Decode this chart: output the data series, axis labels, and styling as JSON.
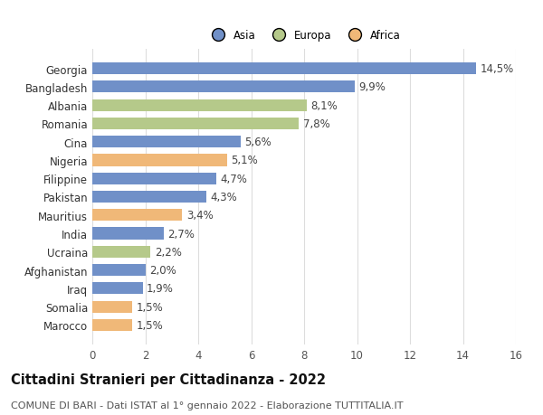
{
  "categories": [
    "Marocco",
    "Somalia",
    "Iraq",
    "Afghanistan",
    "Ucraina",
    "India",
    "Mauritius",
    "Pakistan",
    "Filippine",
    "Nigeria",
    "Cina",
    "Romania",
    "Albania",
    "Bangladesh",
    "Georgia"
  ],
  "values": [
    1.5,
    1.5,
    1.9,
    2.0,
    2.2,
    2.7,
    3.4,
    4.3,
    4.7,
    5.1,
    5.6,
    7.8,
    8.1,
    9.9,
    14.5
  ],
  "continents": [
    "Africa",
    "Africa",
    "Asia",
    "Asia",
    "Europa",
    "Asia",
    "Africa",
    "Asia",
    "Asia",
    "Africa",
    "Asia",
    "Europa",
    "Europa",
    "Asia",
    "Asia"
  ],
  "colors": {
    "Asia": "#7090c8",
    "Europa": "#b5c98a",
    "Africa": "#f0b878"
  },
  "legend_labels": [
    "Asia",
    "Europa",
    "Africa"
  ],
  "legend_colors": [
    "#7090c8",
    "#b5c98a",
    "#f0b878"
  ],
  "title": "Cittadini Stranieri per Cittadinanza - 2022",
  "subtitle": "COMUNE DI BARI - Dati ISTAT al 1° gennaio 2022 - Elaborazione TUTTITALIA.IT",
  "xlim": [
    0,
    16
  ],
  "xticks": [
    0,
    2,
    4,
    6,
    8,
    10,
    12,
    14,
    16
  ],
  "bar_height": 0.65,
  "background_color": "#ffffff",
  "grid_color": "#dddddd",
  "label_fontsize": 8.5,
  "title_fontsize": 10.5,
  "subtitle_fontsize": 8.0,
  "ytick_fontsize": 8.5,
  "xtick_fontsize": 8.5
}
